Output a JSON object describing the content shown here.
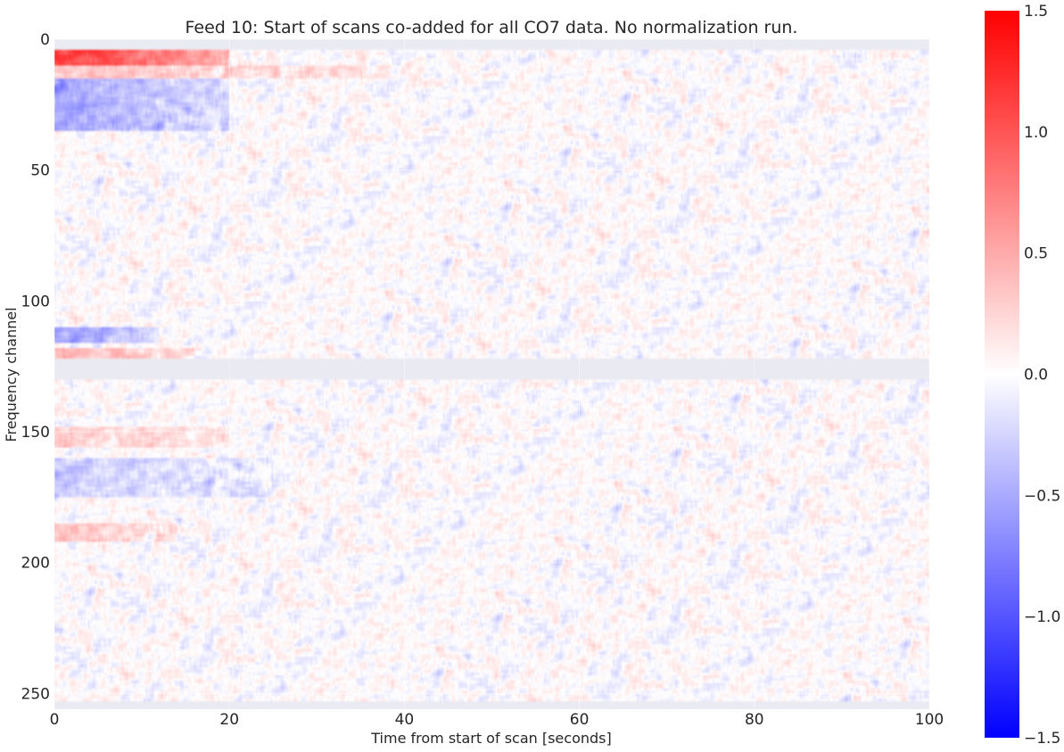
{
  "chart_data": {
    "type": "heatmap",
    "title": "Feed 10: Start of scans co-added for all CO7 data. No normalization run.",
    "xlabel": "Time from start of scan [seconds]",
    "ylabel": "Frequency channel",
    "xlim": [
      0,
      100
    ],
    "ylim": [
      256,
      0
    ],
    "x_ticks": [
      0,
      20,
      40,
      60,
      80,
      100
    ],
    "x_tick_labels": [
      "0",
      "20",
      "40",
      "60",
      "80",
      "100"
    ],
    "y_ticks": [
      0,
      50,
      100,
      150,
      200,
      250
    ],
    "y_tick_labels": [
      "0",
      "50",
      "100",
      "150",
      "200",
      "250"
    ],
    "colormap": "bwr",
    "vmin": -1.5,
    "vmax": 1.5,
    "colorbar_ticks": [
      1.5,
      1.0,
      0.5,
      0.0,
      -0.5,
      -1.0,
      -1.5
    ],
    "colorbar_tick_labels": [
      "1.5",
      "1.0",
      "0.5",
      "0.0",
      "−0.5",
      "−1.0",
      "−1.5"
    ],
    "masked_channel_ranges": [
      [
        0,
        4
      ],
      [
        122,
        130
      ],
      [
        253,
        256
      ]
    ],
    "features": [
      {
        "channels": [
          4,
          10
        ],
        "time": [
          0,
          20
        ],
        "value": 1.2
      },
      {
        "channels": [
          10,
          15
        ],
        "time": [
          0,
          40
        ],
        "value": 0.35
      },
      {
        "channels": [
          15,
          35
        ],
        "time": [
          0,
          20
        ],
        "value": -0.55
      },
      {
        "channels": [
          110,
          116
        ],
        "time": [
          0,
          12
        ],
        "value": -0.6
      },
      {
        "channels": [
          118,
          122
        ],
        "time": [
          0,
          16
        ],
        "value": 0.45
      },
      {
        "channels": [
          148,
          156
        ],
        "time": [
          0,
          20
        ],
        "value": 0.3
      },
      {
        "channels": [
          160,
          175
        ],
        "time": [
          0,
          25
        ],
        "value": -0.3
      },
      {
        "channels": [
          185,
          192
        ],
        "time": [
          0,
          14
        ],
        "value": 0.35
      }
    ],
    "background_noise_std": 0.15,
    "grid": true
  },
  "colors": {
    "background": "#ffffff",
    "axes_face": "#eaeaf2",
    "grid": "#ffffff",
    "text": "#262626",
    "cmap_low": "#0000ff",
    "cmap_mid": "#ffffff",
    "cmap_high": "#ff0000"
  }
}
